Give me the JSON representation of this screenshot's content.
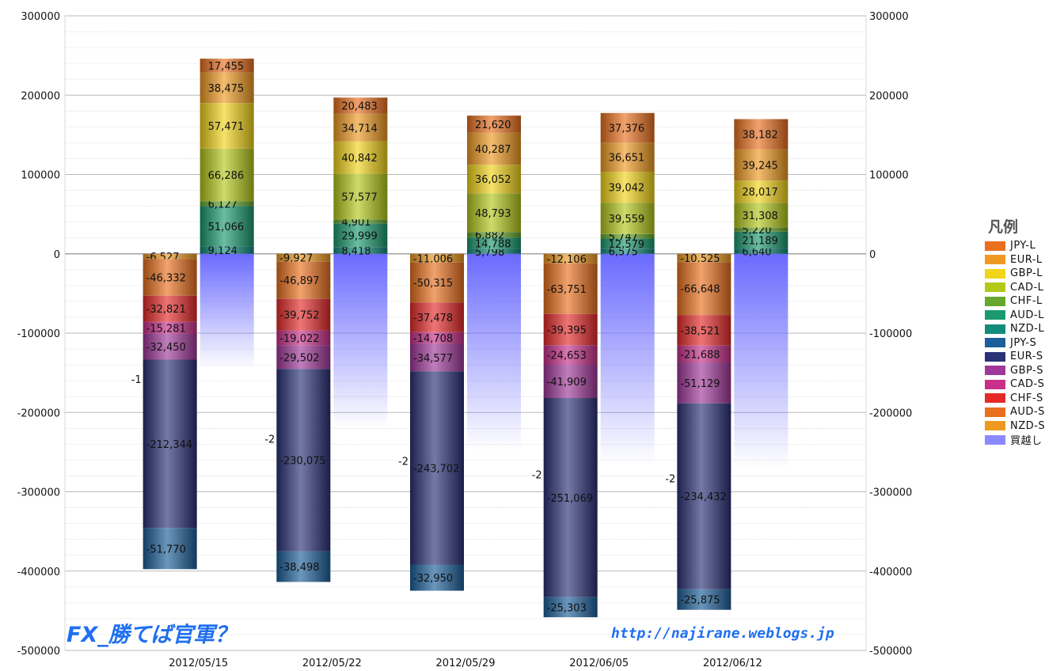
{
  "chart_data": {
    "type": "bar",
    "stacked": true,
    "categories": [
      "2012/05/15",
      "2012/05/22",
      "2012/05/29",
      "2012/06/05",
      "2012/06/12"
    ],
    "ylim": [
      -500000,
      300000
    ],
    "yticks": [
      "300000",
      "200000",
      "100000",
      "0",
      "-100000",
      "-200000",
      "-300000",
      "-400000",
      "-500000"
    ],
    "ytick_values": [
      300000,
      200000,
      100000,
      0,
      -100000,
      -200000,
      -300000,
      -400000,
      -500000
    ],
    "long_series": [
      {
        "name": "NZD-L",
        "color": "#138b7c",
        "values": [
          9124,
          8418,
          5798,
          6575,
          6640
        ],
        "labels": [
          "9,124",
          "8,418",
          "5,798",
          "6,575",
          "6,640"
        ]
      },
      {
        "name": "AUD-L",
        "color": "#1a9a6e",
        "values": [
          51066,
          29999,
          14788,
          12579,
          21189
        ],
        "labels": [
          "51,066",
          "29,999",
          "14,788",
          "12,579",
          "21,189"
        ]
      },
      {
        "name": "CHF-L",
        "color": "#66a82c",
        "values": [
          6127,
          4901,
          6882,
          5747,
          5220
        ],
        "labels": [
          "6,127",
          "4,901",
          "6,882",
          "5,747",
          "5,220"
        ]
      },
      {
        "name": "CAD-L",
        "color": "#b4c81a",
        "values": [
          66286,
          57577,
          48793,
          39559,
          31308
        ],
        "labels": [
          "66,286",
          "57,577",
          "48,793",
          "39,559",
          "31,308"
        ]
      },
      {
        "name": "GBP-L",
        "color": "#f2d41a",
        "values": [
          57471,
          40842,
          36052,
          39042,
          28017
        ],
        "labels": [
          "57,471",
          "40,842",
          "36,052",
          "39,042",
          "28,017"
        ]
      },
      {
        "name": "EUR-L",
        "color": "#ee9a22",
        "values": [
          38475,
          34714,
          40287,
          36651,
          39245
        ],
        "labels": [
          "38,475",
          "34,714",
          "40,287",
          "36,651",
          "39,245"
        ]
      },
      {
        "name": "JPY-L",
        "color": "#e9701f",
        "values": [
          17455,
          20483,
          21620,
          37376,
          38182
        ],
        "labels": [
          "17,455",
          "20,483",
          "21,620",
          "37,376",
          "38,182"
        ]
      }
    ],
    "short_series": [
      {
        "name": "NZD-S",
        "color": "#ee9a22",
        "values": [
          -6527,
          -9927,
          -11006,
          -12106,
          -10525
        ],
        "labels": [
          "-6,527",
          "-9,927",
          "-11,006",
          "-12,106",
          "-10,525"
        ]
      },
      {
        "name": "AUD-S",
        "color": "#e9701f",
        "values": [
          -46332,
          -46897,
          -50315,
          -63751,
          -66648
        ],
        "labels": [
          "-46,332",
          "-46,897",
          "-50,315",
          "-63,751",
          "-66,648"
        ]
      },
      {
        "name": "CHF-S",
        "color": "#e62a2a",
        "values": [
          -32821,
          -39752,
          -37478,
          -39395,
          -38521
        ],
        "labels": [
          "-32,821",
          "-39,752",
          "-37,478",
          "-39,395",
          "-38,521"
        ]
      },
      {
        "name": "CAD-S",
        "color": "#c8308a",
        "values": [
          -15281,
          -19022,
          -14708,
          -24653,
          -21688
        ],
        "labels": [
          "-15,281",
          "-19,022",
          "-14,708",
          "-24,653",
          "-21,688"
        ]
      },
      {
        "name": "GBP-S",
        "color": "#a0389a",
        "values": [
          -32450,
          -29502,
          -34577,
          -41909,
          -51129
        ],
        "labels": [
          "-32,450",
          "-29,502",
          "-34,577",
          "-41,909",
          "-51,129"
        ]
      },
      {
        "name": "EUR-S",
        "color": "#2a3176",
        "values": [
          -212344,
          -230075,
          -243702,
          -251069,
          -234432
        ],
        "labels": [
          "-212,344",
          "-230,075",
          "-243,702",
          "-251,069",
          "-234,432"
        ]
      },
      {
        "name": "JPY-S",
        "color": "#1d5f9a",
        "values": [
          -51770,
          -38498,
          -32950,
          -25303,
          -25875
        ],
        "labels": [
          "-51,770",
          "-38,498",
          "-32,950",
          "-25,303",
          "-25,875"
        ]
      }
    ],
    "net_series": {
      "name": "買越し",
      "color": "#6a6aff",
      "values": [
        -145000,
        -220000,
        -248000,
        -265000,
        -270000
      ],
      "labels": [
        "-1",
        "-2",
        "-2",
        "-2",
        "-2"
      ]
    }
  },
  "legend": {
    "title": "凡例",
    "items": [
      {
        "label": "JPY-L",
        "color": "#e9701f"
      },
      {
        "label": "EUR-L",
        "color": "#ee9a22"
      },
      {
        "label": "GBP-L",
        "color": "#f2d41a"
      },
      {
        "label": "CAD-L",
        "color": "#b4c81a"
      },
      {
        "label": "CHF-L",
        "color": "#66a82c"
      },
      {
        "label": "AUD-L",
        "color": "#1a9a6e"
      },
      {
        "label": "NZD-L",
        "color": "#138b7c"
      },
      {
        "label": "JPY-S",
        "color": "#1d5f9a"
      },
      {
        "label": "EUR-S",
        "color": "#2a3176"
      },
      {
        "label": "GBP-S",
        "color": "#a0389a"
      },
      {
        "label": "CAD-S",
        "color": "#c8308a"
      },
      {
        "label": "CHF-S",
        "color": "#e62a2a"
      },
      {
        "label": "AUD-S",
        "color": "#e9701f"
      },
      {
        "label": "NZD-S",
        "color": "#ee9a22"
      },
      {
        "label": "買越し",
        "color": "#8a8aff"
      }
    ]
  },
  "watermark": {
    "left_text": "FX_勝てば官軍？",
    "right_text": "http://najirane.weblogs.jp"
  }
}
